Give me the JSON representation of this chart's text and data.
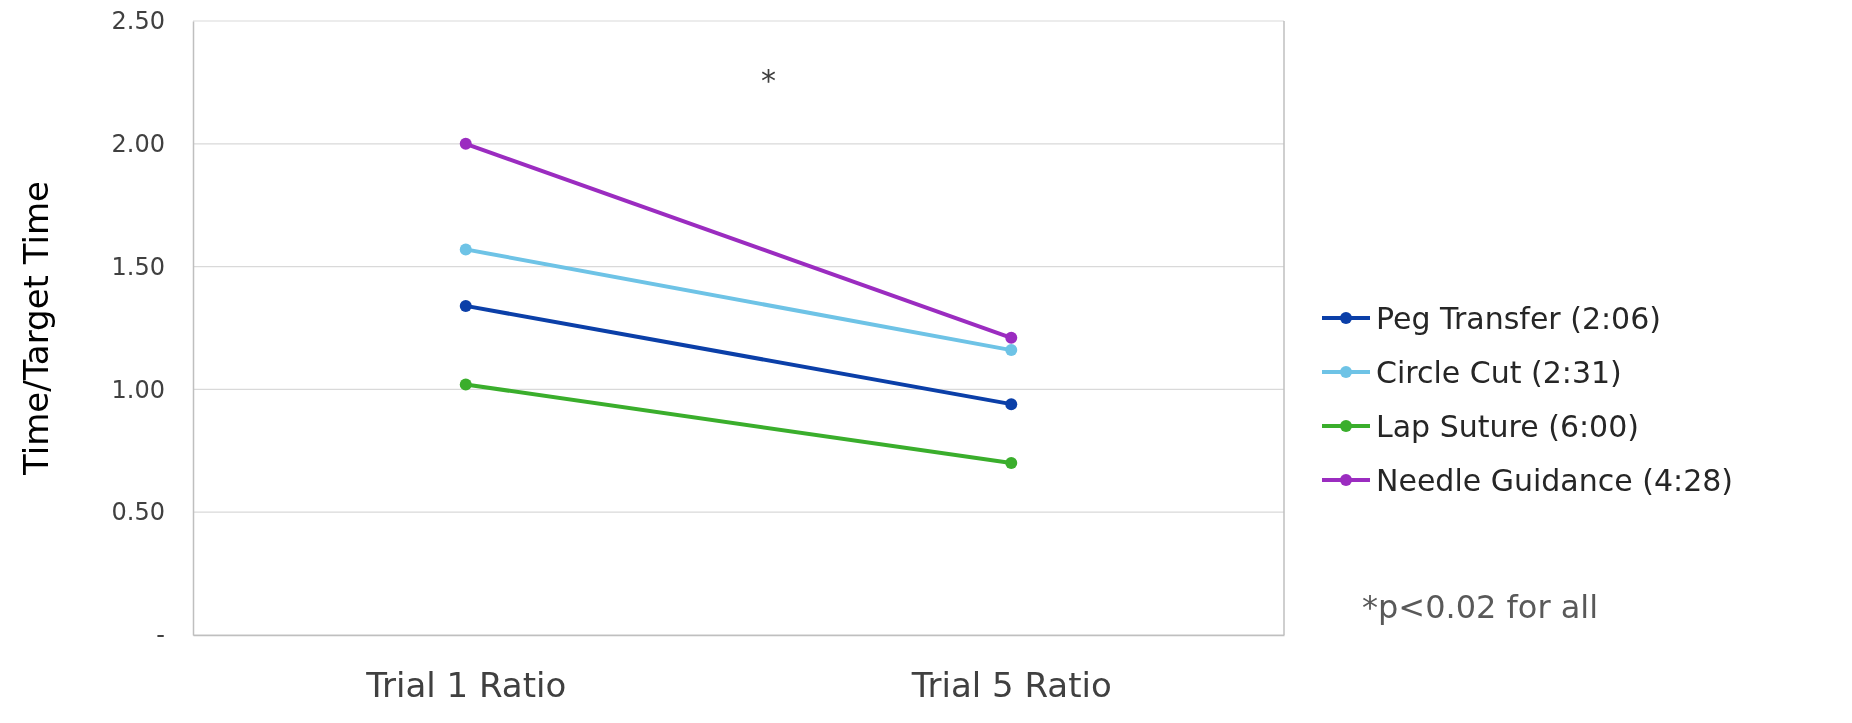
{
  "chart_data": {
    "type": "line",
    "ylabel": "Time/Target Time",
    "categories": [
      "Trial 1 Ratio",
      "Trial 5 Ratio"
    ],
    "series": [
      {
        "name": "Peg Transfer (2:06)",
        "color": "#0b3fa8",
        "values": [
          1.34,
          0.94
        ]
      },
      {
        "name": "Circle Cut (2:31)",
        "color": "#6ec3e6",
        "values": [
          1.57,
          1.16
        ]
      },
      {
        "name": "Lap Suture (6:00)",
        "color": "#3aae2c",
        "values": [
          1.02,
          0.7
        ]
      },
      {
        "name": "Needle Guidance (4:28)",
        "color": "#9b2cc0",
        "values": [
          2.0,
          1.21
        ]
      }
    ],
    "ylim": [
      0,
      2.5
    ],
    "yticks": [
      {
        "value": 0,
        "label": "-"
      },
      {
        "value": 0.5,
        "label": "0.50"
      },
      {
        "value": 1,
        "label": "1.00"
      },
      {
        "value": 1.5,
        "label": "1.50"
      },
      {
        "value": 2,
        "label": "2.00"
      },
      {
        "value": 2.5,
        "label": "2.50"
      }
    ],
    "grid": "y",
    "legend": "right",
    "marker": "circle",
    "line_style": "solid",
    "annotations": [
      "*",
      "*p<0.02 for all"
    ]
  }
}
